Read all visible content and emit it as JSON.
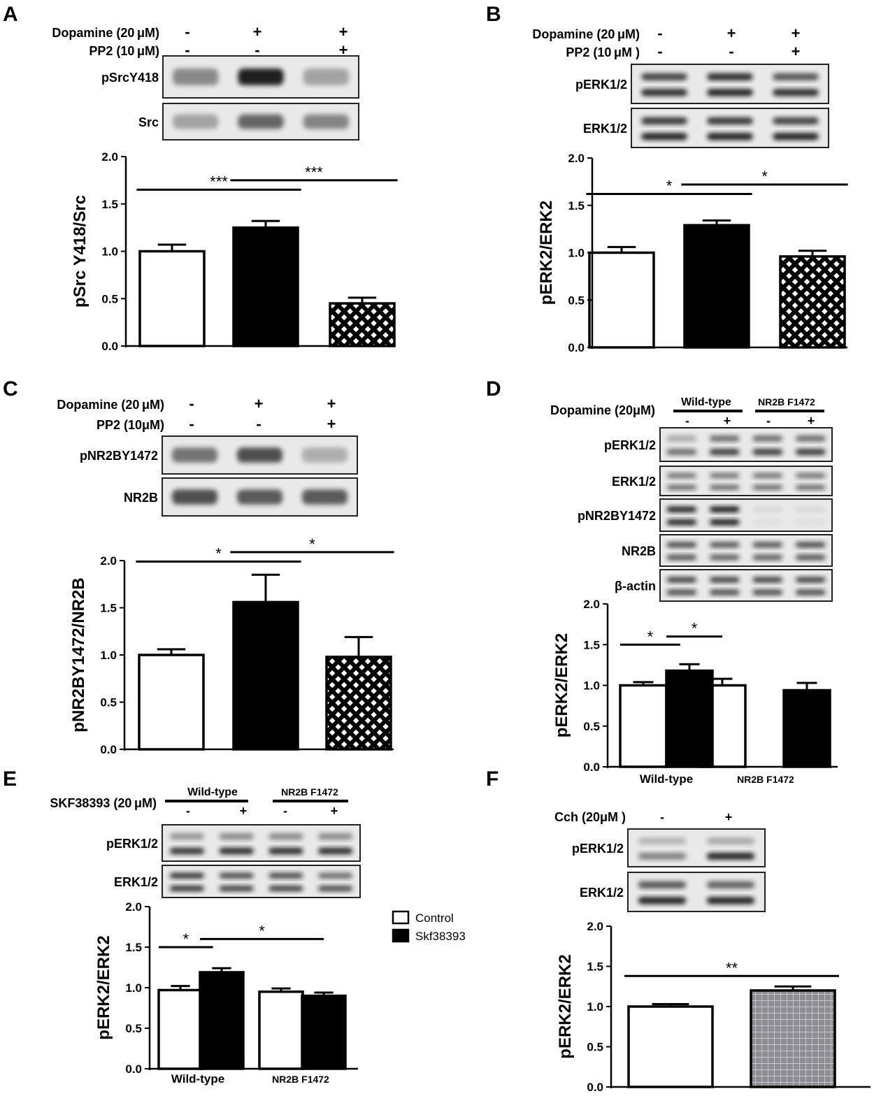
{
  "panels": [
    {
      "letter": "A",
      "treatments": [
        {
          "label": "Dopamine (20 μM)",
          "marks": [
            "-",
            "+",
            "+"
          ]
        },
        {
          "label": "PP2 (10 μM)",
          "marks": [
            "-",
            "-",
            "+"
          ]
        }
      ],
      "blots": [
        {
          "label": "pSrcY418",
          "bands": [
            [
              0.5,
              0.4
            ],
            [
              0.95,
              0.95
            ],
            [
              0.35,
              0.3
            ]
          ]
        },
        {
          "label": "Src",
          "bands": [
            [
              0.35,
              0.3
            ],
            [
              0.65,
              0.6
            ],
            [
              0.5,
              0.45
            ]
          ]
        }
      ],
      "chart_data": {
        "type": "bar",
        "ylabel": "pSrc Y418/Src",
        "ylim": [
          0,
          2.0
        ],
        "yticks": [
          "0.0",
          "0.5",
          "1.0",
          "1.5",
          "2.0"
        ],
        "categories": [
          "Dopamine - / PP2 -",
          "Dopamine + / PP2 -",
          "Dopamine + / PP2 +"
        ],
        "values": [
          1.0,
          1.25,
          0.45
        ],
        "errors": [
          0.07,
          0.07,
          0.06
        ],
        "fills": [
          "white",
          "black",
          "crosshatch"
        ],
        "significance": [
          {
            "from": 0,
            "to": 1,
            "y": 1.65,
            "label": "***"
          },
          {
            "from": 1,
            "to": 2,
            "y": 1.75,
            "label": "***"
          }
        ]
      }
    },
    {
      "letter": "B",
      "treatments": [
        {
          "label": "Dopamine (20 μM)",
          "marks": [
            "-",
            "+",
            "+"
          ]
        },
        {
          "label": "PP2 (10 μM )",
          "marks": [
            "-",
            "-",
            "+"
          ]
        }
      ],
      "blots": [
        {
          "label": "pERK1/2",
          "bands": [
            [
              0.8,
              0.9
            ],
            [
              0.9,
              0.95
            ],
            [
              0.7,
              0.9
            ]
          ]
        },
        {
          "label": "ERK1/2",
          "bands": [
            [
              0.85,
              0.95
            ],
            [
              0.85,
              0.95
            ],
            [
              0.8,
              0.95
            ]
          ]
        }
      ],
      "chart_data": {
        "type": "bar",
        "ylabel": "pERK2/ERK2",
        "ylim": [
          0,
          2.0
        ],
        "yticks": [
          "0.0",
          "0.5",
          "1.0",
          "1.5",
          "2.0"
        ],
        "categories": [
          "Dopamine - / PP2 -",
          "Dopamine + / PP2 -",
          "Dopamine + / PP2 +"
        ],
        "values": [
          1.0,
          1.29,
          0.96
        ],
        "errors": [
          0.06,
          0.05,
          0.06
        ],
        "fills": [
          "white",
          "black",
          "crosshatch"
        ],
        "significance": [
          {
            "from": 0,
            "to": 1,
            "y": 1.62,
            "label": "*"
          },
          {
            "from": 1,
            "to": 2,
            "y": 1.72,
            "label": "*"
          }
        ]
      }
    },
    {
      "letter": "C",
      "treatments": [
        {
          "label": "Dopamine (20 μM)",
          "marks": [
            "-",
            "+",
            "+"
          ]
        },
        {
          "label": "PP2 (10μM)",
          "marks": [
            "-",
            "-",
            "+"
          ]
        }
      ],
      "blots": [
        {
          "label": "pNR2BY1472",
          "bands": [
            [
              0.6,
              0.5
            ],
            [
              0.75,
              0.7
            ],
            [
              0.3,
              0.25
            ]
          ]
        },
        {
          "label": "NR2B",
          "bands": [
            [
              0.75,
              0.7
            ],
            [
              0.7,
              0.65
            ],
            [
              0.7,
              0.65
            ]
          ]
        }
      ],
      "chart_data": {
        "type": "bar",
        "ylabel": "pNR2BY1472/NR2B",
        "ylim": [
          0,
          2.0
        ],
        "yticks": [
          "0.0",
          "0.5",
          "1.0",
          "1.5",
          "2.0"
        ],
        "categories": [
          "Dopamine - / PP2 -",
          "Dopamine + / PP2 -",
          "Dopamine + / PP2 +"
        ],
        "values": [
          1.0,
          1.56,
          0.98
        ],
        "errors": [
          0.06,
          0.29,
          0.21
        ],
        "fills": [
          "white",
          "black",
          "crosshatch"
        ],
        "significance": [
          {
            "from": 0,
            "to": 1,
            "y": 1.99,
            "label": "*"
          },
          {
            "from": 1,
            "to": 2,
            "y": 2.09,
            "label": "*"
          }
        ]
      }
    },
    {
      "letter": "D",
      "treatment_label": "Dopamine (20μM)",
      "group_headers": [
        "Wild-type",
        "NR2B F1472"
      ],
      "marks": [
        "-",
        "+",
        "-",
        "+"
      ],
      "blots": [
        {
          "label": "pERK1/2",
          "bands": [
            [
              0.3,
              0.6
            ],
            [
              0.6,
              0.85
            ],
            [
              0.6,
              0.85
            ],
            [
              0.6,
              0.85
            ]
          ]
        },
        {
          "label": "ERK1/2",
          "bands": [
            [
              0.55,
              0.6
            ],
            [
              0.55,
              0.6
            ],
            [
              0.55,
              0.6
            ],
            [
              0.55,
              0.6
            ]
          ]
        },
        {
          "label": "pNR2BY1472",
          "bands": [
            [
              0.95,
              0.95
            ],
            [
              1.0,
              1.0
            ],
            [
              0.08,
              0.05
            ],
            [
              0.08,
              0.05
            ]
          ]
        },
        {
          "label": "NR2B",
          "bands": [
            [
              0.75,
              0.7
            ],
            [
              0.7,
              0.65
            ],
            [
              0.7,
              0.65
            ],
            [
              0.75,
              0.7
            ]
          ]
        },
        {
          "label": "β-actin",
          "bands": [
            [
              0.8,
              0.75
            ],
            [
              0.8,
              0.75
            ],
            [
              0.8,
              0.75
            ],
            [
              0.8,
              0.75
            ]
          ]
        }
      ],
      "chart_data": {
        "type": "bar",
        "ylabel": "pERK2/ERK2",
        "ylim": [
          0,
          2.0
        ],
        "yticks": [
          "0.0",
          "0.5",
          "1.0",
          "1.5",
          "2.0"
        ],
        "groups": [
          "Wild-type",
          "NR2B F1472"
        ],
        "series": [
          {
            "values": [
              1.0,
              1.0
            ],
            "errors": [
              0.04,
              0.08
            ],
            "fill": "white"
          },
          {
            "values": [
              1.18,
              0.94
            ],
            "errors": [
              0.08,
              0.09
            ],
            "fill": "black"
          }
        ],
        "significance": [
          {
            "from": [
              0,
              0
            ],
            "to": [
              0,
              1
            ],
            "y": 1.5,
            "label": "*"
          },
          {
            "from": [
              0,
              1
            ],
            "to": [
              1,
              0
            ],
            "y": 1.6,
            "label": "*"
          }
        ]
      }
    },
    {
      "letter": "E",
      "treatment_label": "SKF38393 (20 μM)",
      "group_headers": [
        "Wild-type",
        "NR2B F1472"
      ],
      "marks": [
        "-",
        "+",
        "-",
        "+"
      ],
      "blots": [
        {
          "label": "pERK1/2",
          "bands": [
            [
              0.4,
              0.85
            ],
            [
              0.45,
              0.9
            ],
            [
              0.45,
              0.9
            ],
            [
              0.45,
              0.9
            ]
          ]
        },
        {
          "label": "ERK1/2",
          "bands": [
            [
              0.85,
              0.85
            ],
            [
              0.75,
              0.8
            ],
            [
              0.75,
              0.8
            ],
            [
              0.6,
              0.75
            ]
          ]
        }
      ],
      "legend": [
        {
          "label": "Control",
          "fill": "white"
        },
        {
          "label": "Skf38393",
          "fill": "black"
        }
      ],
      "chart_data": {
        "type": "bar",
        "ylabel": "pERK2/ERK2",
        "ylim": [
          0,
          2.0
        ],
        "yticks": [
          "0.0",
          "0.5",
          "1.0",
          "1.5",
          "2.0"
        ],
        "groups": [
          "Wild-type",
          "NR2B F1472"
        ],
        "series": [
          {
            "name": "Control",
            "values": [
              0.97,
              0.95
            ],
            "errors": [
              0.05,
              0.04
            ],
            "fill": "white"
          },
          {
            "name": "Skf38393",
            "values": [
              1.19,
              0.9
            ],
            "errors": [
              0.05,
              0.04
            ],
            "fill": "black"
          }
        ],
        "significance": [
          {
            "from": [
              0,
              0
            ],
            "to": [
              0,
              1
            ],
            "y": 1.5,
            "label": "*"
          },
          {
            "from": [
              0,
              1
            ],
            "to": [
              1,
              1
            ],
            "y": 1.6,
            "label": "*"
          }
        ]
      }
    },
    {
      "letter": "F",
      "treatment_label": "Cch (20μM )",
      "marks": [
        "-",
        "+"
      ],
      "blots": [
        {
          "label": "pERK1/2",
          "bands": [
            [
              0.25,
              0.5
            ],
            [
              0.3,
              0.95
            ]
          ]
        },
        {
          "label": "ERK1/2",
          "bands": [
            [
              0.7,
              0.95
            ],
            [
              0.65,
              0.95
            ]
          ]
        }
      ],
      "chart_data": {
        "type": "bar",
        "ylabel": "pERK2/ERK2",
        "ylim": [
          0,
          2.0
        ],
        "yticks": [
          "0.0",
          "0.5",
          "1.0",
          "1.5",
          "2.0"
        ],
        "categories": [
          "Cch -",
          "Cch +"
        ],
        "values": [
          1.0,
          1.2
        ],
        "errors": [
          0.03,
          0.05
        ],
        "fills": [
          "white",
          "grid-gray"
        ],
        "significance": [
          {
            "from": 0,
            "to": 1,
            "y": 1.38,
            "label": "**"
          }
        ]
      }
    }
  ]
}
